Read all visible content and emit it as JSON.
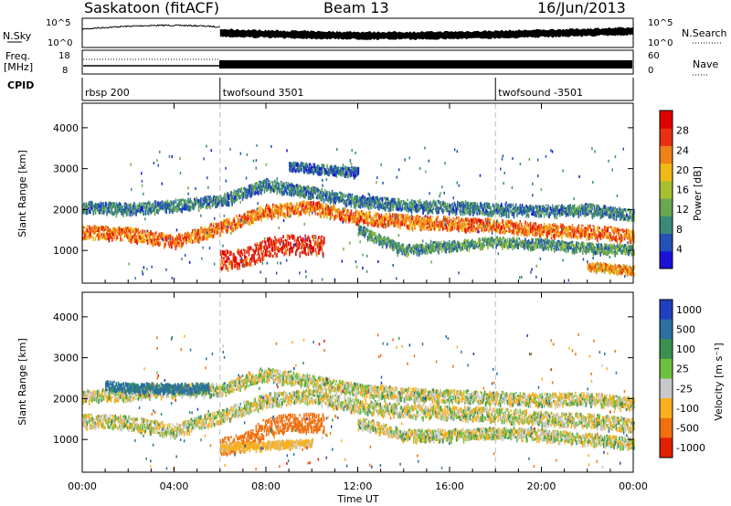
{
  "header": {
    "station": "Saskatoon (fitACF)",
    "beam": "Beam 13",
    "date": "16/Jun/2013"
  },
  "top_panels": {
    "nsky_label": "N.Sky",
    "nsky_ticks": [
      "10^5",
      "10^0"
    ],
    "nsearch_label": "N.Search",
    "nsearch_ticks": [
      "10^5",
      "10^0"
    ],
    "freq_label": "Freq.",
    "freq_unit": "[MHz]",
    "freq_ticks": [
      "18",
      "8"
    ],
    "nave_label": "Nave",
    "nave_ticks": [
      "60",
      "0"
    ],
    "cpid_label": "CPID",
    "cpid_segments": [
      {
        "label": "rbsp 200",
        "start_hour": 0
      },
      {
        "label": "twofsound 3501",
        "start_hour": 6
      },
      {
        "label": "twofsound -3501",
        "start_hour": 18
      }
    ]
  },
  "chart_data": [
    {
      "type": "heatmap",
      "name": "power",
      "ylabel": "Slant Range [km]",
      "y_ticks": [
        "1000",
        "2000",
        "3000",
        "4000"
      ],
      "ylim": [
        200,
        4600
      ],
      "xlim": [
        0,
        24
      ],
      "colorbar": {
        "label": "Power [dB]",
        "ticks": [
          "4",
          "8",
          "12",
          "16",
          "20",
          "24",
          "28"
        ],
        "colors": [
          "#1a10d8",
          "#2450b8",
          "#3a8a78",
          "#6aa850",
          "#a8c030",
          "#f0b818",
          "#f08018",
          "#e83010",
          "#e00000"
        ]
      },
      "bands": [
        {
          "points": [
            [
              0.0,
              1450
            ],
            [
              2.0,
              1400
            ],
            [
              4.0,
              1200
            ],
            [
              6.0,
              1550
            ],
            [
              8.0,
              1950
            ],
            [
              10.0,
              2050
            ],
            [
              12.0,
              1800
            ],
            [
              14.0,
              1700
            ],
            [
              16.0,
              1650
            ],
            [
              18.0,
              1600
            ],
            [
              20.0,
              1500
            ],
            [
              22.0,
              1450
            ],
            [
              24.0,
              1350
            ]
          ],
          "width": 300,
          "level": 22
        },
        {
          "points": [
            [
              0.0,
              2050
            ],
            [
              2.0,
              2000
            ],
            [
              4.0,
              2100
            ],
            [
              6.0,
              2200
            ],
            [
              8.0,
              2600
            ],
            [
              10.0,
              2400
            ],
            [
              12.0,
              2200
            ],
            [
              14.0,
              2100
            ],
            [
              16.0,
              2050
            ],
            [
              18.0,
              2000
            ],
            [
              20.0,
              1950
            ],
            [
              22.0,
              2000
            ],
            [
              24.0,
              1850
            ]
          ],
          "width": 260,
          "level": 8
        },
        {
          "points": [
            [
              6.0,
              750
            ],
            [
              7.0,
              800
            ],
            [
              8.0,
              1050
            ],
            [
              9.0,
              1150
            ],
            [
              10.5,
              1100
            ]
          ],
          "width": 450,
          "level": 26
        },
        {
          "points": [
            [
              9.0,
              3050
            ],
            [
              10.0,
              3000
            ],
            [
              11.0,
              2950
            ],
            [
              12.0,
              2900
            ]
          ],
          "width": 200,
          "level": 6
        },
        {
          "points": [
            [
              12.0,
              1500
            ],
            [
              14.0,
              1000
            ],
            [
              16.0,
              1100
            ],
            [
              18.0,
              1200
            ],
            [
              20.0,
              1150
            ],
            [
              22.0,
              1050
            ],
            [
              24.0,
              1000
            ]
          ],
          "width": 220,
          "level": 10
        },
        {
          "points": [
            [
              22.0,
              600
            ],
            [
              23.0,
              550
            ],
            [
              24.0,
              500
            ]
          ],
          "width": 200,
          "level": 20
        }
      ]
    },
    {
      "type": "heatmap",
      "name": "velocity",
      "ylabel": "Slant Range [km]",
      "y_ticks": [
        "1000",
        "2000",
        "3000",
        "4000"
      ],
      "ylim": [
        200,
        4600
      ],
      "xlim": [
        0,
        24
      ],
      "colorbar": {
        "label": "Velocity [m s⁻¹]",
        "ticks": [
          "1000",
          "500",
          "100",
          "25",
          "-25",
          "-100",
          "-500",
          "-1000"
        ],
        "colors": [
          "#2040c0",
          "#2a70a0",
          "#3a9050",
          "#70c040",
          "#c8c8c8",
          "#f8b020",
          "#f07010",
          "#e02000"
        ]
      },
      "bands": [
        {
          "points": [
            [
              0.0,
              1450
            ],
            [
              2.0,
              1400
            ],
            [
              4.0,
              1200
            ],
            [
              6.0,
              1550
            ],
            [
              8.0,
              1950
            ],
            [
              10.0,
              2050
            ],
            [
              12.0,
              1800
            ],
            [
              14.0,
              1700
            ],
            [
              16.0,
              1650
            ],
            [
              18.0,
              1600
            ],
            [
              20.0,
              1500
            ],
            [
              22.0,
              1450
            ],
            [
              24.0,
              1350
            ]
          ],
          "width": 320,
          "level": 0
        },
        {
          "points": [
            [
              0.0,
              2050
            ],
            [
              2.0,
              2100
            ],
            [
              4.0,
              2200
            ],
            [
              6.0,
              2200
            ],
            [
              8.0,
              2600
            ],
            [
              10.0,
              2400
            ],
            [
              12.0,
              2200
            ],
            [
              14.0,
              2100
            ],
            [
              16.0,
              2050
            ],
            [
              18.0,
              2000
            ],
            [
              20.0,
              1950
            ],
            [
              22.0,
              2000
            ],
            [
              24.0,
              1850
            ]
          ],
          "width": 300,
          "level": 0
        },
        {
          "points": [
            [
              1.0,
              2300
            ],
            [
              2.5,
              2250
            ],
            [
              4.5,
              2250
            ],
            [
              5.5,
              2250
            ]
          ],
          "width": 220,
          "level": 300
        },
        {
          "points": [
            [
              6.0,
              800
            ],
            [
              7.0,
              900
            ],
            [
              8.0,
              1300
            ],
            [
              9.0,
              1400
            ],
            [
              10.5,
              1400
            ]
          ],
          "width": 430,
          "level": -400
        },
        {
          "points": [
            [
              6.0,
              800
            ],
            [
              8.0,
              850
            ],
            [
              10.0,
              900
            ]
          ],
          "width": 180,
          "level": -80
        },
        {
          "points": [
            [
              12.0,
              1400
            ],
            [
              14.0,
              1100
            ],
            [
              16.0,
              1100
            ],
            [
              18.0,
              1150
            ],
            [
              20.0,
              1100
            ],
            [
              22.0,
              1000
            ],
            [
              24.0,
              900
            ]
          ],
          "width": 260,
          "level": 0
        }
      ]
    }
  ],
  "x_axis": {
    "label": "Time UT",
    "ticks": [
      "00:00",
      "04:00",
      "08:00",
      "12:00",
      "16:00",
      "20:00",
      "00:00"
    ]
  }
}
